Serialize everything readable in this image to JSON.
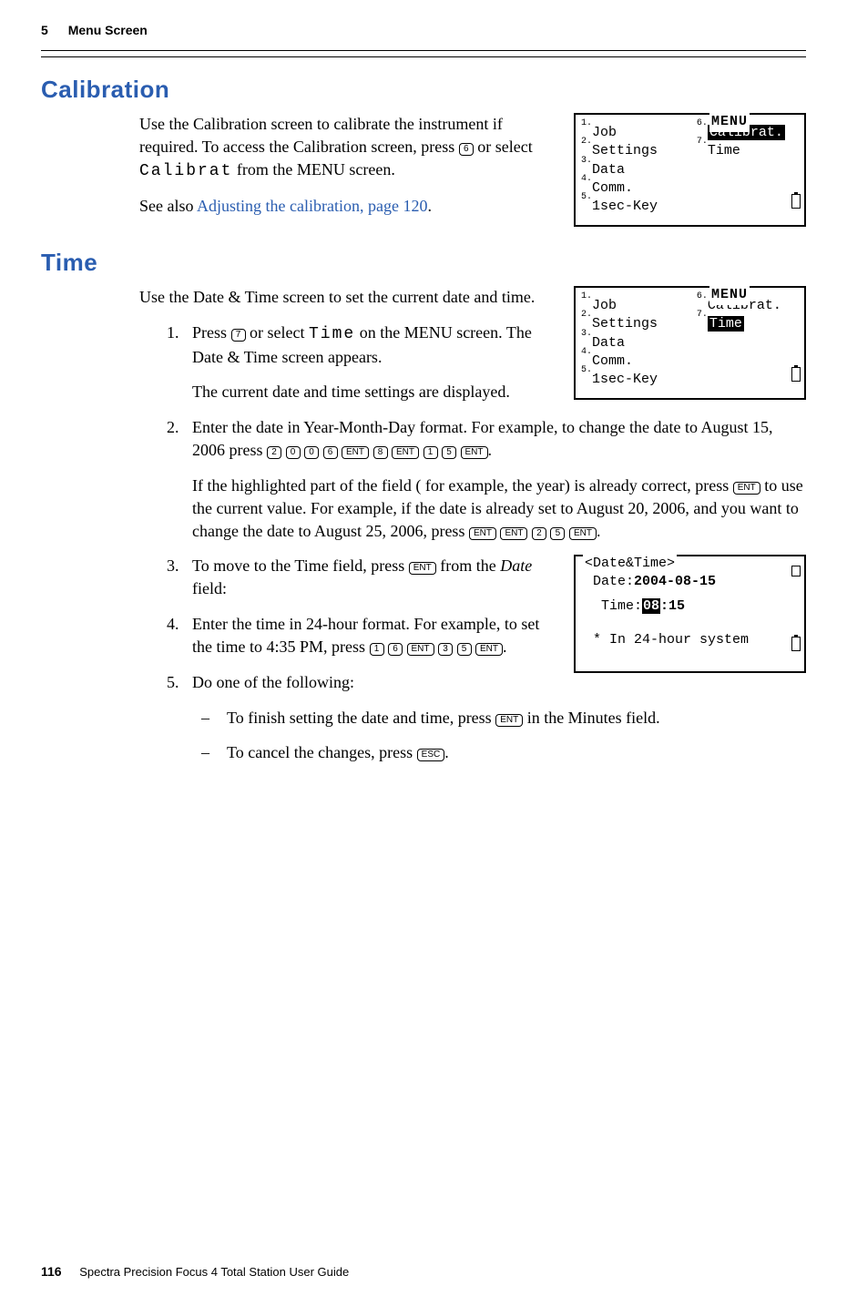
{
  "header": {
    "chapter_number": "5",
    "chapter_title": "Menu Screen"
  },
  "sections": {
    "calibration": {
      "title": "Calibration",
      "p1a": "Use the Calibration screen to calibrate the instrument if required. To access the Calibration screen, press ",
      "key6": "6",
      "p1b": " or select ",
      "mono": "Calibrat",
      "p1c": " from the MENU screen.",
      "p2a": "See also ",
      "link": "Adjusting the calibration, page 120",
      "p2b": "."
    },
    "time": {
      "title": "Time",
      "intro": "Use the Date & Time screen to set the current date and time.",
      "s1a": "Press ",
      "key7": "7",
      "s1b": " or select ",
      "mono1": "Time",
      "s1c": " on the MENU screen. The Date & Time screen appears.",
      "s1d": "The current date and time settings are displayed.",
      "s2a": "Enter the date in Year-Month-Day format. For example, to change the date to August 15, 2006 press ",
      "k2": "2",
      "k0a": "0",
      "k0b": "0",
      "k6a": "6",
      "kent1": "ENT",
      "k8": "8",
      "kent2": "ENT",
      "k1a": "1",
      "k5a": "5",
      "kent3": "ENT",
      "s2b": ".",
      "s2c": "If the highlighted part of the field ( for example, the year) is already correct, press ",
      "kent4": "ENT",
      "s2d": " to use the current value. For example, if the date is already set to August 20, 2006, and you want to change the date to August 25, 2006, press ",
      "kent5": "ENT",
      "kent6": "ENT",
      "k2b": "2",
      "k5b": "5",
      "kent7": "ENT",
      "s2e": ".",
      "s3a": "To move to the Time field, press ",
      "kent8": "ENT",
      "s3b": " from the ",
      "s3c": "Date",
      "s3d": " field:",
      "s4a": "Enter the time in 24-hour format. For example, to set the time to 4:35 PM, press ",
      "k1b": "1",
      "k6b": "6",
      "kent9": "ENT",
      "k3": "3",
      "k5c": "5",
      "kent10": "ENT",
      "s4b": ".",
      "s5": "Do one of the following:",
      "s5a_a": "To finish setting the date and time, press ",
      "kent11": "ENT",
      "s5a_b": " in the Minutes field.",
      "s5b_a": "To cancel the changes, press ",
      "kesc": "ESC",
      "s5b_b": "."
    }
  },
  "lcd_menu": {
    "title": "MENU",
    "left": [
      "Job",
      "Settings",
      "Data",
      "Comm.",
      "1sec-Key"
    ],
    "right": [
      "Calibrat.",
      "Time"
    ]
  },
  "lcd_dt": {
    "title": "<Date&Time>",
    "date_label": "Date:",
    "date_value": "2004-08-15",
    "time_label": "Time:",
    "time_hl": "08",
    "time_rest": ":15",
    "note": "* In 24-hour system"
  },
  "footer": {
    "page": "116",
    "book": "Spectra Precision Focus 4 Total Station User Guide"
  },
  "colors": {
    "accent": "#2a5db0"
  }
}
